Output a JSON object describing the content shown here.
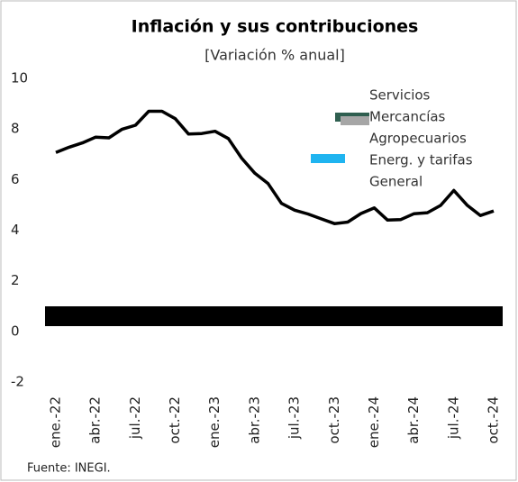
{
  "chart_data": {
    "type": "line",
    "title": "Inflación y sus contribuciones",
    "subtitle": "[Variación % anual]",
    "source": "Fuente: INEGI.",
    "categories": [
      "ene.-22",
      null,
      null,
      "abr.-22",
      null,
      null,
      "jul.-22",
      null,
      null,
      "oct.-22",
      null,
      null,
      "ene.-23",
      null,
      null,
      "abr.-23",
      null,
      null,
      "jul.-23",
      null,
      null,
      "oct.-23",
      null,
      null,
      "ene.-24",
      null,
      null,
      "abr.-24",
      null,
      null,
      "jul.-24",
      null,
      null,
      "oct.-24"
    ],
    "legend": [
      {
        "name": "Servicios"
      },
      {
        "name": "Mercancías",
        "color": "#2f5f50"
      },
      {
        "name": "Agropecuarios",
        "color": "#a6a6a6"
      },
      {
        "name": "Energ. y tarifas",
        "color": "#1fb4f0"
      }
    ],
    "series": [
      {
        "name": "General",
        "color": "#000000",
        "values": [
          7.07,
          7.28,
          7.45,
          7.68,
          7.65,
          7.99,
          8.15,
          8.7,
          8.7,
          8.41,
          7.8,
          7.82,
          7.91,
          7.62,
          6.85,
          6.25,
          5.84,
          5.06,
          4.79,
          4.64,
          4.45,
          4.26,
          4.32,
          4.66,
          4.88,
          4.4,
          4.42,
          4.65,
          4.69,
          4.98,
          5.57,
          4.99,
          4.58,
          4.76
        ]
      }
    ],
    "ylim": [
      -2,
      10
    ],
    "yticks": [
      -2,
      0,
      2,
      4,
      6,
      8,
      10
    ]
  }
}
